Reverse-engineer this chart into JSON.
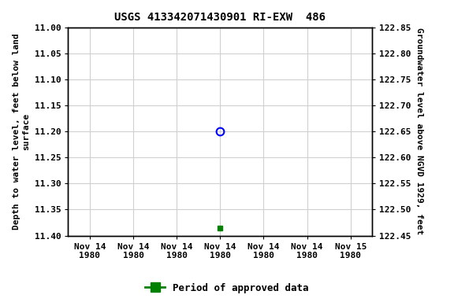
{
  "title": "USGS 413342071430901 RI-EXW  486",
  "ylabel_left": "Depth to water level, feet below land\nsurface",
  "ylabel_right": "Groundwater level above NGVD 1929, feet",
  "ylim_left": [
    11.0,
    11.4
  ],
  "ylim_right": [
    122.45,
    122.85
  ],
  "yticks_left": [
    11.0,
    11.05,
    11.1,
    11.15,
    11.2,
    11.25,
    11.3,
    11.35,
    11.4
  ],
  "yticks_right": [
    122.45,
    122.5,
    122.55,
    122.6,
    122.65,
    122.7,
    122.75,
    122.8,
    122.85
  ],
  "data_blue_x": 3,
  "data_blue_y": 11.2,
  "data_green_x": 3,
  "data_green_y": 11.385,
  "xticklabels": [
    "Nov 14\n1980",
    "Nov 14\n1980",
    "Nov 14\n1980",
    "Nov 14\n1980",
    "Nov 14\n1980",
    "Nov 14\n1980",
    "Nov 15\n1980"
  ],
  "xtick_positions": [
    0,
    1,
    2,
    3,
    4,
    5,
    6
  ],
  "xlim": [
    -0.5,
    6.5
  ],
  "background_color": "#ffffff",
  "grid_color": "#d0d0d0",
  "legend_label": "Period of approved data",
  "legend_color": "#008000",
  "title_fontsize": 10,
  "tick_fontsize": 8,
  "ylabel_fontsize": 8
}
